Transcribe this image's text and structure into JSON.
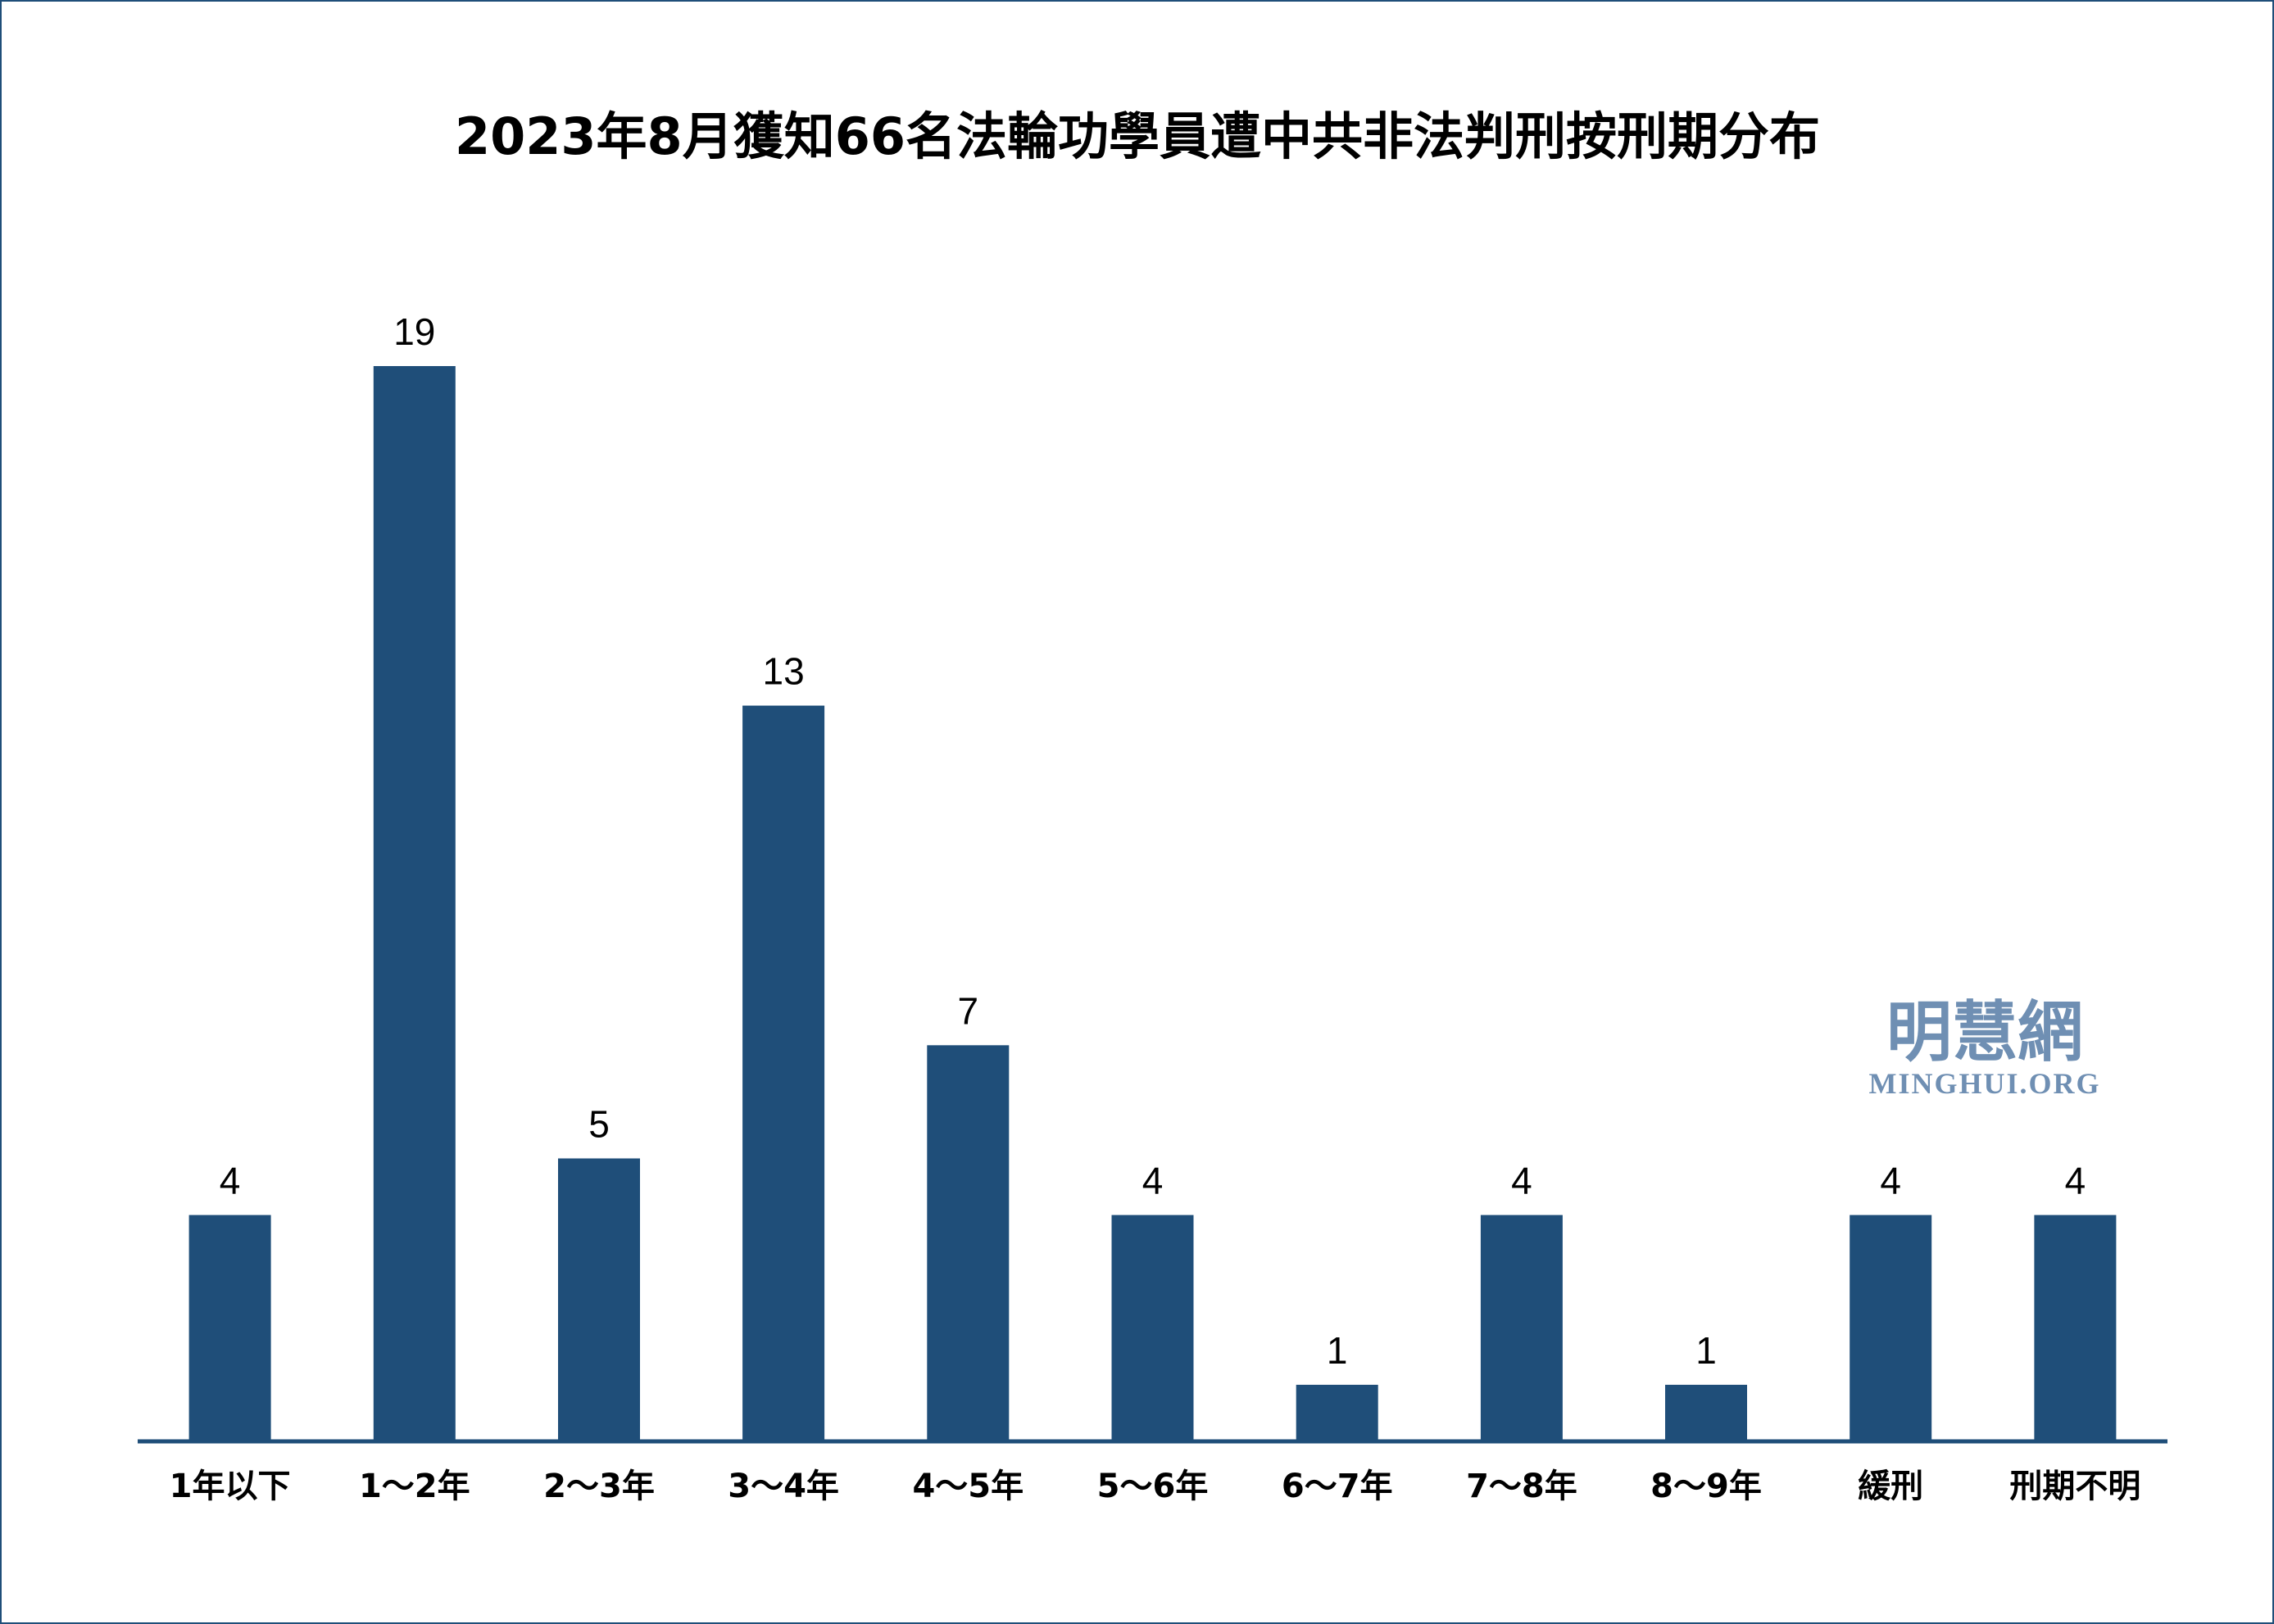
{
  "colors": {
    "bar": "#1f4e79",
    "frame": "#1f4e79",
    "axis": "#1f4e79",
    "watermark": "#6f8fb3"
  },
  "watermark": {
    "cn": "明慧網",
    "en": "MINGHUI.ORG"
  },
  "chart_data": {
    "type": "bar",
    "title": "2023年8月獲知66名法輪功學員遭中共非法判刑按刑期分布",
    "categories": [
      "1年以下",
      "1～2年",
      "2～3年",
      "3～4年",
      "4～5年",
      "5～6年",
      "6～7年",
      "7～8年",
      "8～9年",
      "緩刑",
      "刑期不明"
    ],
    "values": [
      4,
      19,
      5,
      13,
      7,
      4,
      1,
      4,
      1,
      4,
      4
    ],
    "xlabel": "",
    "ylabel": "",
    "ylim": [
      0,
      19
    ],
    "grid": false,
    "legend": "none",
    "data_labels": true
  }
}
